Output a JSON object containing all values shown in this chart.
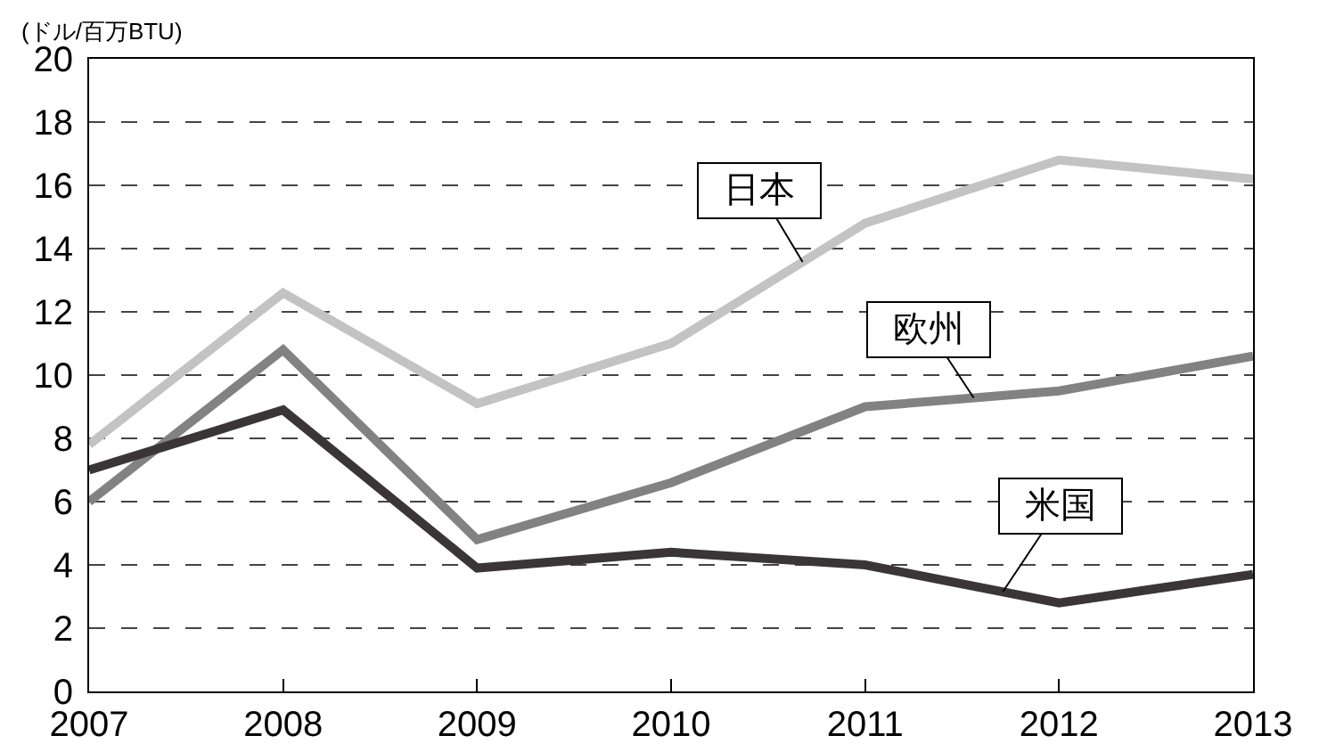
{
  "chart_data": {
    "type": "line",
    "ylabel": "(ドル/百万BTU)",
    "x": [
      2007,
      2008,
      2009,
      2010,
      2011,
      2012,
      2013
    ],
    "xlim": [
      2007,
      2013
    ],
    "xticks": [
      2007,
      2008,
      2009,
      2010,
      2011,
      2012,
      2013
    ],
    "ylim": [
      0,
      20
    ],
    "yticks": [
      0,
      2,
      4,
      6,
      8,
      10,
      12,
      14,
      16,
      18,
      20
    ],
    "grid": "y",
    "line_style": "solid",
    "series": [
      {
        "name": "日本",
        "color": "#c3c3c3",
        "values": [
          7.8,
          12.6,
          9.1,
          11.0,
          14.8,
          16.8,
          16.2
        ]
      },
      {
        "name": "欧州",
        "color": "#828282",
        "values": [
          6.0,
          10.8,
          4.8,
          6.6,
          9.0,
          9.5,
          10.6
        ]
      },
      {
        "name": "米国",
        "color": "#3a3536",
        "values": [
          7.0,
          8.9,
          3.9,
          4.4,
          4.0,
          2.8,
          3.7
        ]
      }
    ]
  }
}
